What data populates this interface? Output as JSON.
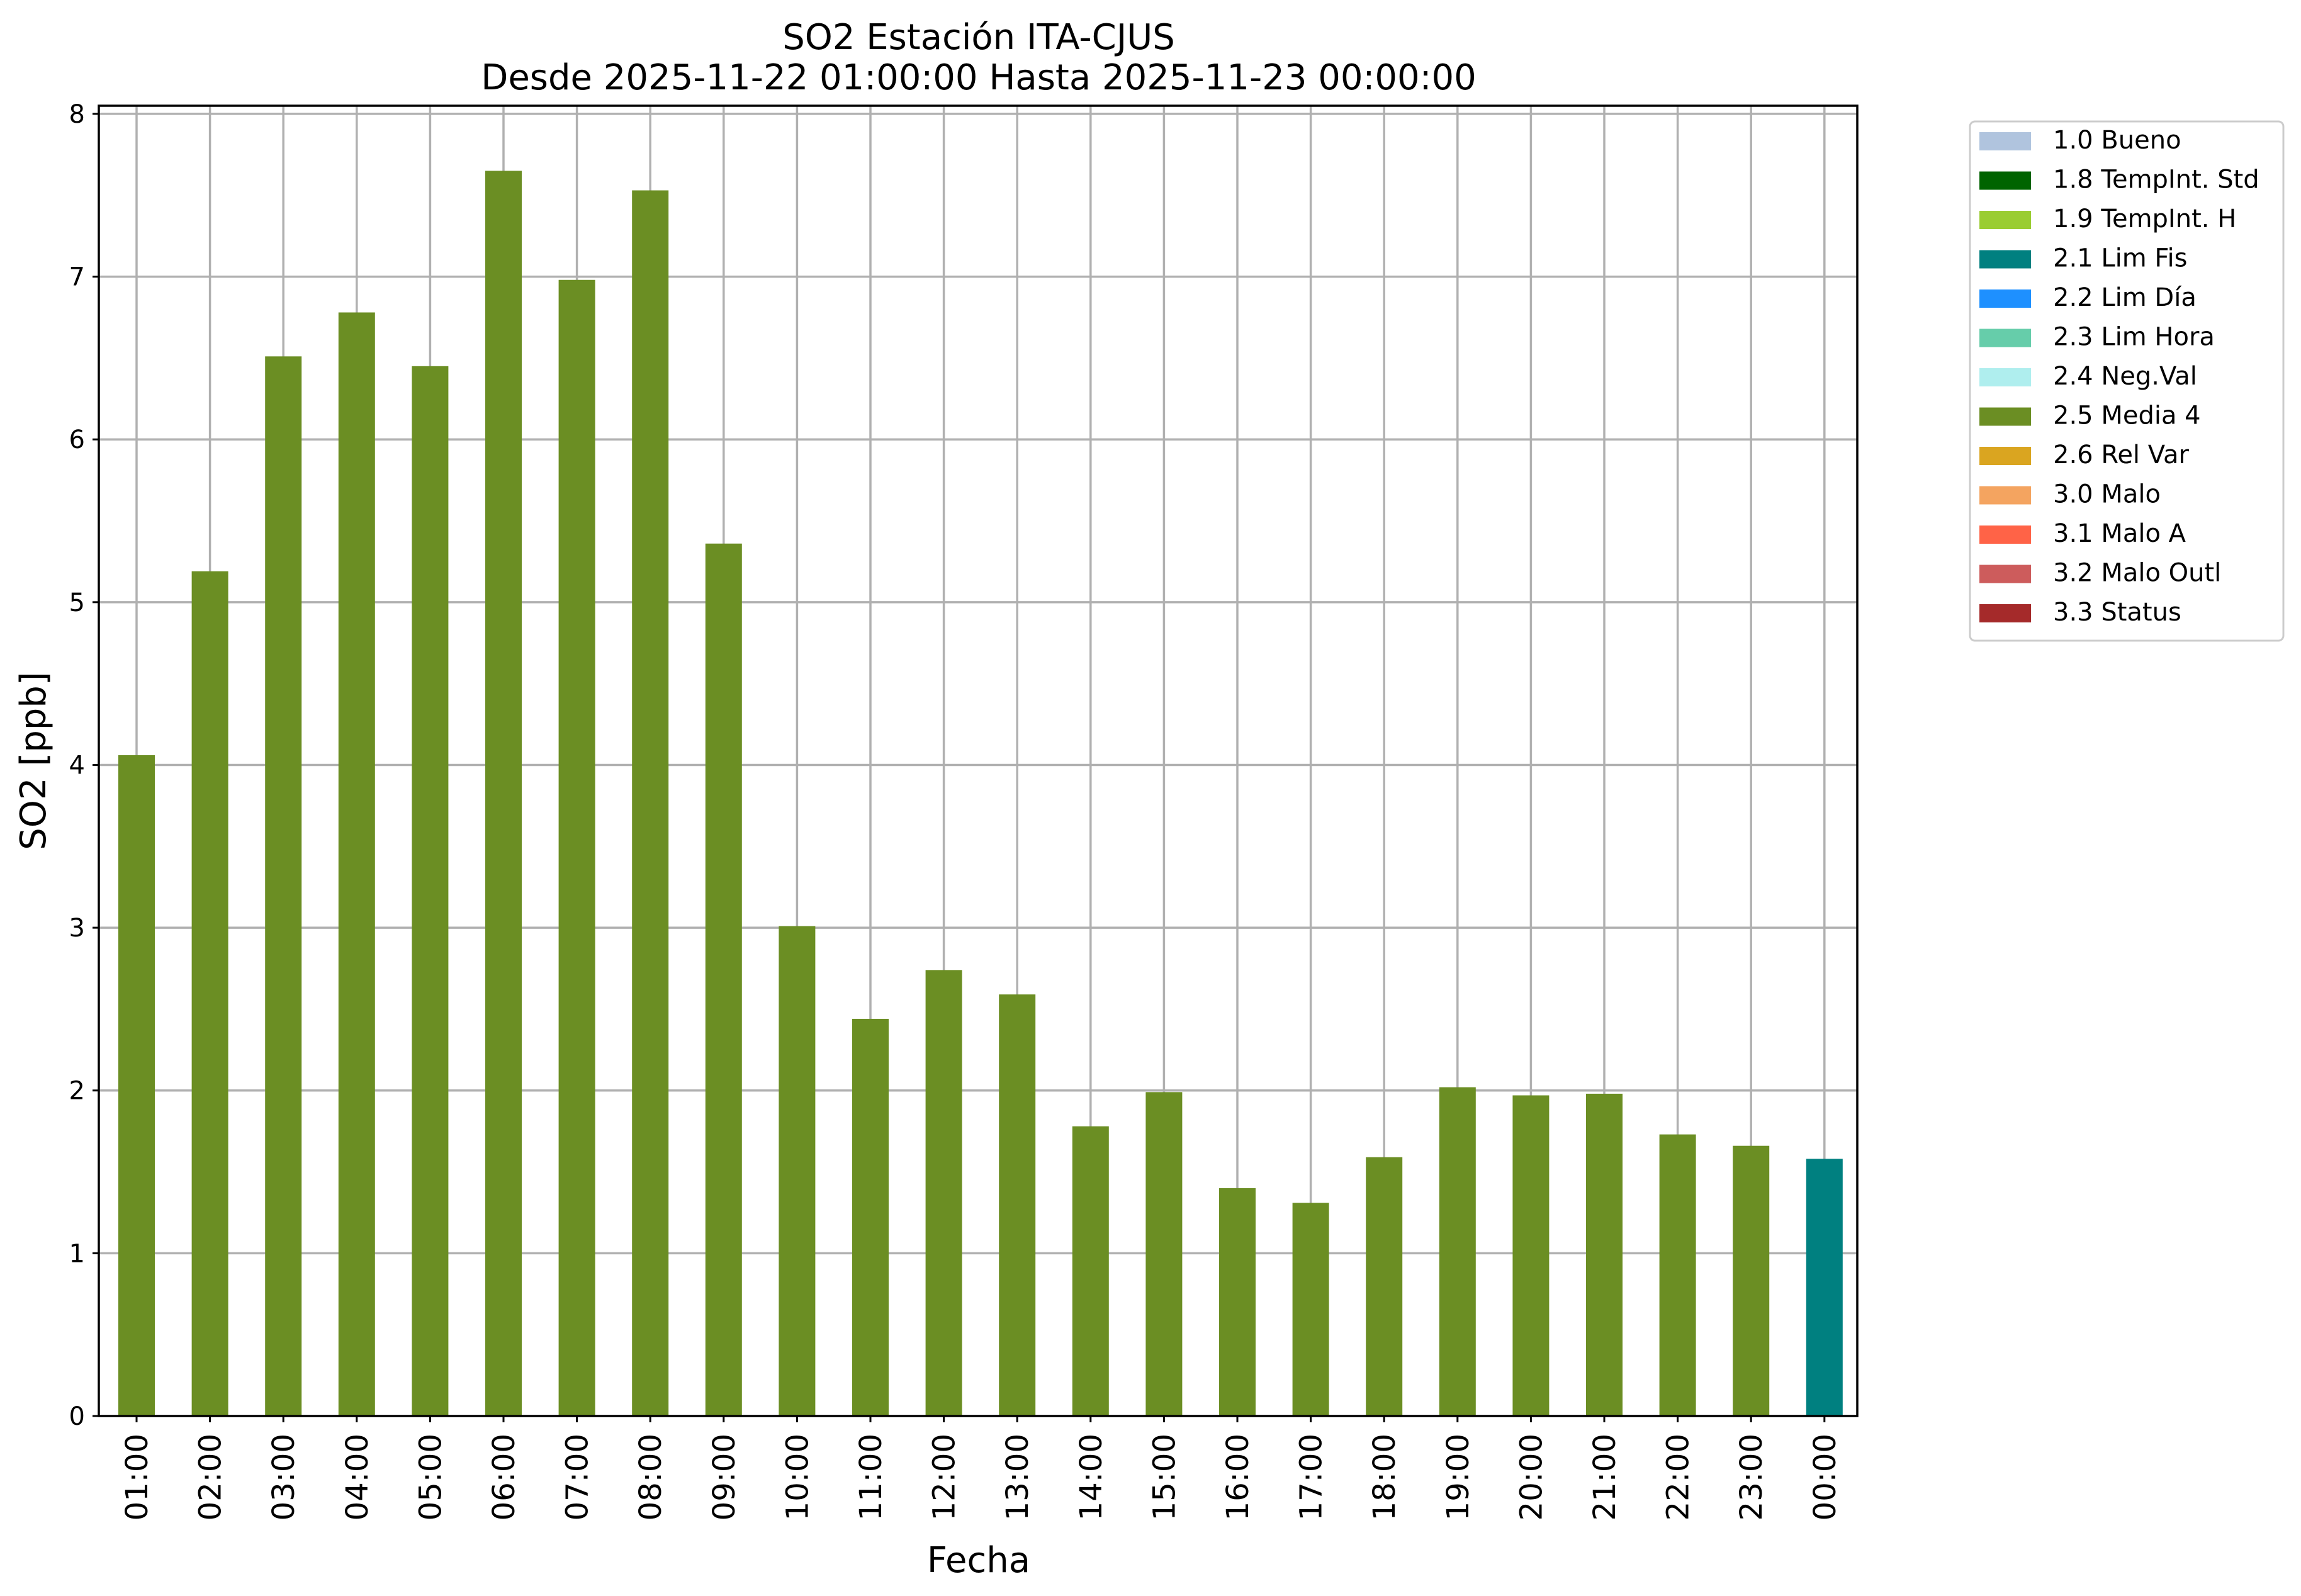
{
  "chart_data": {
    "type": "bar",
    "title": "SO2 Estación ITA-CJUS",
    "subtitle": "Desde 2025-11-22 01:00:00 Hasta 2025-11-23 00:00:00",
    "xlabel": "Fecha",
    "ylabel": "SO2 [ppb]",
    "ylim": [
      0,
      8.05
    ],
    "yticks": [
      0,
      1,
      2,
      3,
      4,
      5,
      6,
      7,
      8
    ],
    "grid": true,
    "legend_position": "outside-right-top",
    "categories": [
      "01:00",
      "02:00",
      "03:00",
      "04:00",
      "05:00",
      "06:00",
      "07:00",
      "08:00",
      "09:00",
      "10:00",
      "11:00",
      "12:00",
      "13:00",
      "14:00",
      "15:00",
      "16:00",
      "17:00",
      "18:00",
      "19:00",
      "20:00",
      "21:00",
      "22:00",
      "23:00",
      "00:00"
    ],
    "values": [
      4.06,
      5.19,
      6.51,
      6.78,
      6.45,
      7.65,
      6.98,
      7.53,
      5.36,
      3.01,
      2.44,
      2.74,
      2.59,
      1.78,
      1.99,
      1.4,
      1.31,
      1.59,
      2.02,
      1.97,
      1.98,
      1.73,
      1.66,
      1.58
    ],
    "bar_flags": [
      "2.5 Media 4",
      "2.5 Media 4",
      "2.5 Media 4",
      "2.5 Media 4",
      "2.5 Media 4",
      "2.5 Media 4",
      "2.5 Media 4",
      "2.5 Media 4",
      "2.5 Media 4",
      "2.5 Media 4",
      "2.5 Media 4",
      "2.5 Media 4",
      "2.5 Media 4",
      "2.5 Media 4",
      "2.5 Media 4",
      "2.5 Media 4",
      "2.5 Media 4",
      "2.5 Media 4",
      "2.5 Media 4",
      "2.5 Media 4",
      "2.5 Media 4",
      "2.5 Media 4",
      "2.5 Media 4",
      "2.1 Lim Fis"
    ],
    "legend": [
      {
        "label": "1.0 Bueno",
        "color": "#b0c4de"
      },
      {
        "label": "1.8 TempInt. Std",
        "color": "#006400"
      },
      {
        "label": "1.9 TempInt. H",
        "color": "#9acd32"
      },
      {
        "label": "2.1 Lim Fis",
        "color": "#008080"
      },
      {
        "label": "2.2 Lim Día",
        "color": "#1e90ff"
      },
      {
        "label": "2.3 Lim Hora",
        "color": "#66cdaa"
      },
      {
        "label": "2.4 Neg.Val",
        "color": "#afeeee"
      },
      {
        "label": "2.5 Media 4",
        "color": "#6b8e23"
      },
      {
        "label": "2.6 Rel Var",
        "color": "#daa520"
      },
      {
        "label": "3.0 Malo",
        "color": "#f4a460"
      },
      {
        "label": "3.1 Malo A",
        "color": "#ff6347"
      },
      {
        "label": "3.2 Malo Outl",
        "color": "#cd5c5c"
      },
      {
        "label": "3.3 Status",
        "color": "#a52a2a"
      }
    ]
  }
}
